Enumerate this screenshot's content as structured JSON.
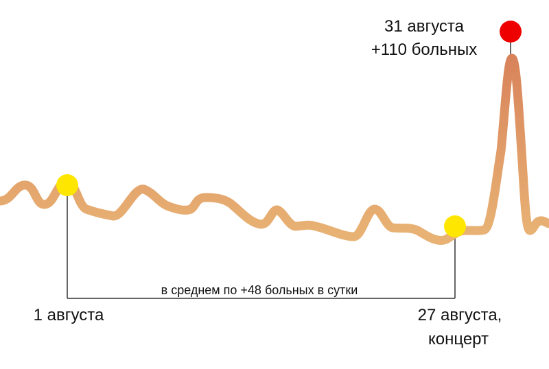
{
  "chart_data": {
    "type": "line",
    "colors": {
      "line": "#e8b274",
      "peak_gradient_top": "#d8825a",
      "marker_normal": "#ffe600",
      "marker_peak": "#ee0000",
      "guide": "#333333"
    },
    "annotations": {
      "start": "1 августа",
      "event_line1": "27 августа,",
      "event_line2": "концерт",
      "peak_line1": "31 августа",
      "peak_line2": "+110 больных",
      "average": "в среднем по +48 больных в сутки"
    }
  }
}
